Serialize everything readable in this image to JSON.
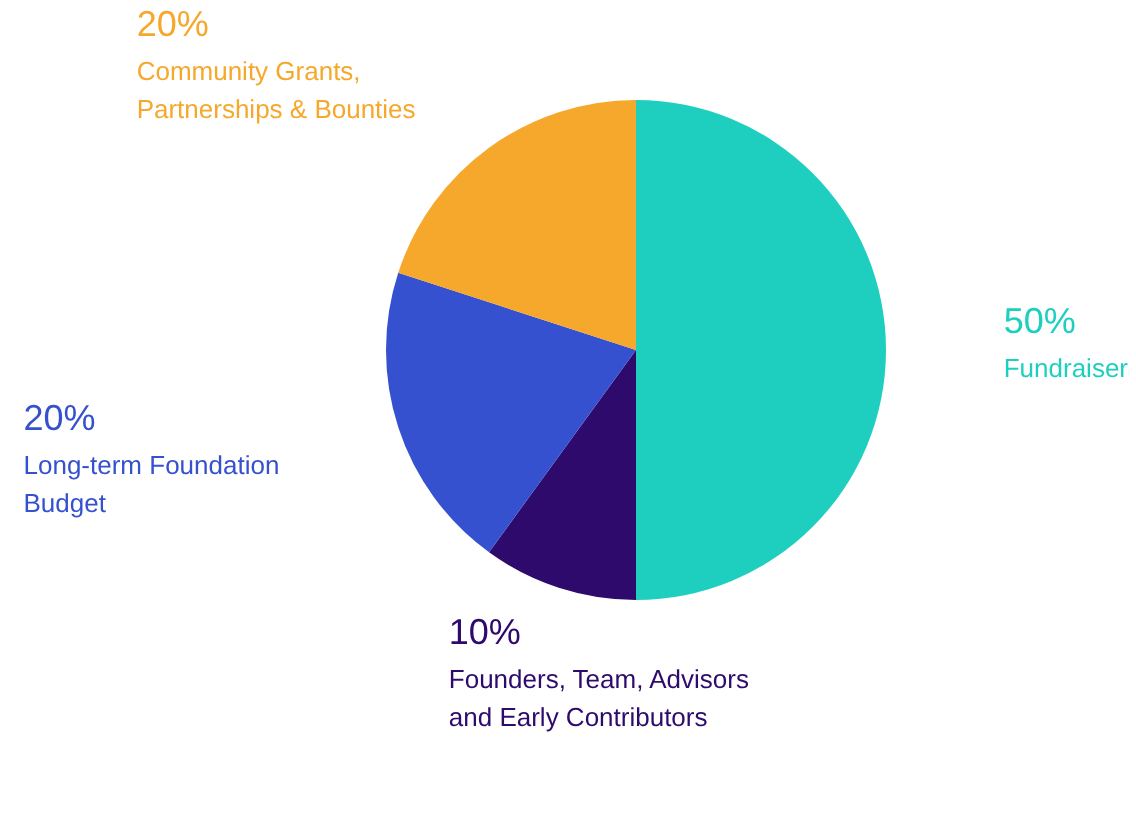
{
  "chart_data": {
    "type": "pie",
    "categories": [
      "Fundraiser",
      "Founders, Team, Advisors and Early Contributors",
      "Long-term Foundation Budget",
      "Community Grants, Partnerships & Bounties"
    ],
    "values": [
      50,
      10,
      20,
      20
    ],
    "value_labels": [
      "50%",
      "10%",
      "20%",
      "20%"
    ],
    "colors": [
      "#1ecfc0",
      "#2d0a6b",
      "#3551cf",
      "#f5a82b"
    ],
    "legend": false
  }
}
